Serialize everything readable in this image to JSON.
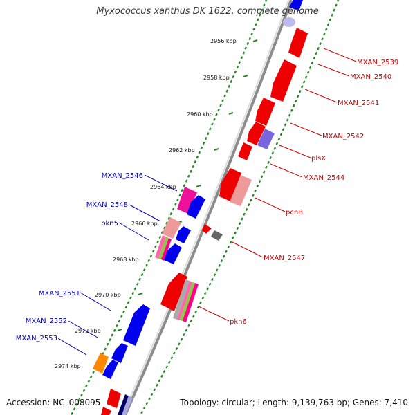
{
  "title": "Myxococcus xanthus DK 1622, complete genome",
  "footer": {
    "accession": "Accession: NC_008095",
    "summary": "Topology: circular; Length: 9,139,763 bp; Genes: 7,410"
  },
  "colors": {
    "forward_label": "#cc0000",
    "reverse_label": "#0000aa",
    "backbone": "#999999",
    "tick_marks": "#228822"
  },
  "ticks": [
    "2956 kbp",
    "2958 kbp",
    "2960 kbp",
    "2962 kbp",
    "2964 kbp",
    "2966 kbp",
    "2968 kbp",
    "2970 kbp",
    "2972 kbp",
    "2974 kbp"
  ],
  "genes_forward": [
    {
      "label": "MXAN_2539"
    },
    {
      "label": "MXAN_2540"
    },
    {
      "label": "MXAN_2541"
    },
    {
      "label": "MXAN_2542"
    },
    {
      "label": "plsX"
    },
    {
      "label": "MXAN_2544"
    },
    {
      "label": "pcnB"
    },
    {
      "label": "MXAN_2547"
    },
    {
      "label": "pkn6"
    }
  ],
  "genes_reverse": [
    {
      "label": "MXAN_2546"
    },
    {
      "label": "MXAN_2548"
    },
    {
      "label": "pkn5"
    },
    {
      "label": "MXAN_2551"
    },
    {
      "label": "MXAN_2552"
    },
    {
      "label": "MXAN_2553"
    }
  ]
}
